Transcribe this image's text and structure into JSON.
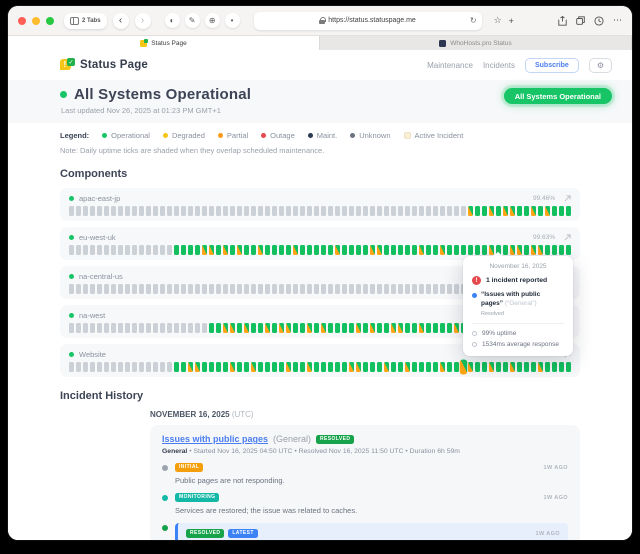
{
  "browser": {
    "tabs_count_label": "2 Tabs",
    "url": "https://status.statuspage.me",
    "icons": {
      "back": "‹",
      "forward": "›",
      "reader": "◐",
      "pen": "✎",
      "extension": "⊕",
      "pin": "•",
      "reload": "↻",
      "star": "☆",
      "new_tab": "+",
      "more": "⋯"
    },
    "tabs": [
      {
        "title": "Status Page"
      },
      {
        "title": "WhoHosts.pro Status"
      }
    ]
  },
  "header": {
    "logo_text": "Status Page",
    "logo_sup": "hosted",
    "nav_maintenance": "Maintenance",
    "nav_incidents": "Incidents",
    "subscribe_label": "Subscribe",
    "gear": "⚙"
  },
  "hero": {
    "title": "All Systems Operational",
    "last_updated": "Last updated Nov 26, 2025 at 01:23 PM GMT+1",
    "status_pill": "All Systems Operational"
  },
  "legend": {
    "label": "Legend:",
    "items": [
      {
        "label": "Operational",
        "color": "#17c566",
        "shape": "dot"
      },
      {
        "label": "Degraded",
        "color": "#f5c518",
        "shape": "dot"
      },
      {
        "label": "Partial",
        "color": "#fb9a18",
        "shape": "dot"
      },
      {
        "label": "Outage",
        "color": "#e5484d",
        "shape": "dot"
      },
      {
        "label": "Maint.",
        "color": "#2b3a55",
        "shape": "dot"
      },
      {
        "label": "Unknown",
        "color": "#6b7280",
        "shape": "dot"
      },
      {
        "label": "Active Incident",
        "color": "#f9eed6",
        "shape": "square"
      }
    ],
    "note": "Note: Daily uptime ticks are shaded when they overlap scheduled maintenance."
  },
  "components": {
    "title": "Components",
    "rows": [
      {
        "name": "apac-east-jp",
        "uptime": "99.46%",
        "ticks": "uuuuuuuuuuuuuuuuuuuuuuuuuuuuuuuuuuuuuuuuuuuuuuuuuuuuuuuuumoomommoomomooo"
      },
      {
        "name": "eu-west-uk",
        "uptime": "99.63%",
        "ticks": "uuuuuuuuuuuuuuuoooommomomoomoooomooooomoooommooooomoomoooooomoommommoooo"
      },
      {
        "name": "na-central-us",
        "uptime": "",
        "ticks": "uuuuuuuuuuuuuuuuuuuuuuuuuuuuuuuuuuuuuuuuuuuuuuuuuuuuuuuuuuuuuuuuuuuuuooo"
      },
      {
        "name": "na-west",
        "uptime": "",
        "ticks": "uuuuuuuuuuuuuuuuuuuuoommomoomommoomomoooomomoommoomoooomommoomoomooomooo"
      },
      {
        "name": "Website",
        "uptime": "",
        "ticks": "uuuuuuuuuuuuuuuoommoooomoomoooomoomooooommooomoomoooomoohmoomoomooomoooo"
      }
    ]
  },
  "tooltip": {
    "date": "November 16, 2025",
    "alert_glyph": "!",
    "incident_count": "1 incident reported",
    "incident_title": "“Issues with public pages”",
    "incident_scope": "(“General”)",
    "incident_status": "Resolved",
    "uptime": "99% uptime",
    "response": "1534ms average response"
  },
  "incident_history": {
    "title": "Incident History",
    "date_label": "NOVEMBER 16, 2025",
    "date_tz": "(UTC)",
    "card": {
      "title": "Issues with public pages",
      "scope": "(General)",
      "badge": {
        "label": "RESOLVED",
        "color": "#16a34a"
      },
      "meta_bold": "General",
      "meta_rest": " • Started Nov 16, 2025 04:50 UTC • Resolved Nov 16, 2025 11:50 UTC • Duration 6h 59m",
      "updates": [
        {
          "dot": "#9ca3af",
          "badges": [
            {
              "label": "INITIAL",
              "color": "#f59e0b"
            }
          ],
          "time": "1W AGO",
          "text": "Public pages are not responding.",
          "highlight": false
        },
        {
          "dot": "#14b8a6",
          "badges": [
            {
              "label": "MONITORING",
              "color": "#14b8a6"
            }
          ],
          "time": "1W AGO",
          "text": "Services are restored; the issue was related to caches.",
          "highlight": false
        },
        {
          "dot": "#16a34a",
          "badges": [
            {
              "label": "RESOLVED",
              "color": "#16a34a"
            },
            {
              "label": "LATEST",
              "color": "#3b82f6"
            }
          ],
          "time": "1W AGO",
          "text": "The issue seems to be fixed.",
          "highlight": true
        }
      ]
    }
  }
}
